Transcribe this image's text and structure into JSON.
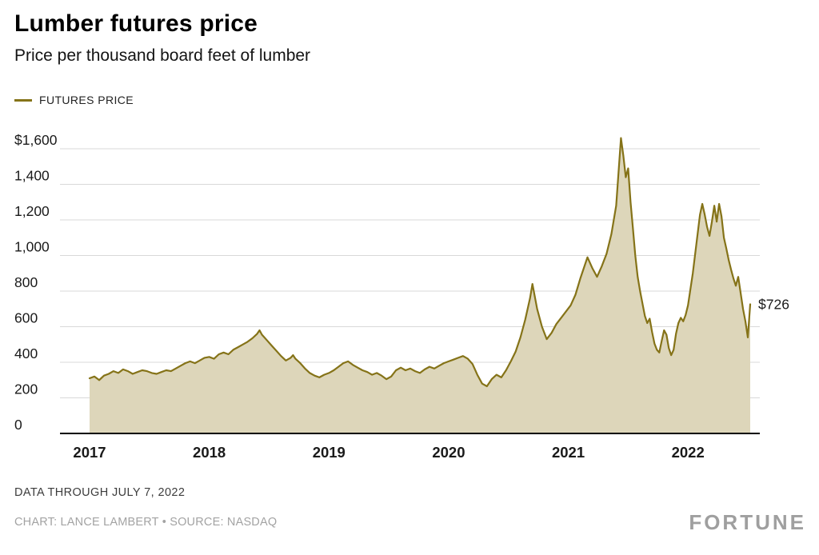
{
  "header": {
    "title": "Lumber futures price",
    "subtitle": "Price per thousand board feet of lumber"
  },
  "legend": {
    "label": "FUTURES PRICE"
  },
  "annotation": {
    "last_value_label": "$726"
  },
  "footer": {
    "note": "DATA THROUGH JULY 7, 2022",
    "credit": "CHART: LANCE LAMBERT • SOURCE: NASDAQ",
    "brand": "FORTUNE"
  },
  "colors": {
    "line": "#857318",
    "fill": "#ddd6ba",
    "grid": "#d9d9d9",
    "axis": "#000000",
    "text": "#1a1a1a",
    "muted": "#3c3c3c",
    "faint": "#a3a3a3"
  },
  "chart_data": {
    "type": "area",
    "title": "Lumber futures price",
    "subtitle": "Price per thousand board feet of lumber",
    "xlabel": "",
    "ylabel": "Price per thousand board feet of lumber",
    "ylim": [
      0,
      1600
    ],
    "x_range": [
      2017.0,
      2022.52
    ],
    "grid": "horizontal",
    "legend_position": "top-left",
    "last_point_label": "$726",
    "yticks": [
      {
        "value": 0,
        "label": "0"
      },
      {
        "value": 200,
        "label": "200"
      },
      {
        "value": 400,
        "label": "400"
      },
      {
        "value": 600,
        "label": "600"
      },
      {
        "value": 800,
        "label": "800"
      },
      {
        "value": 1000,
        "label": "1,000"
      },
      {
        "value": 1200,
        "label": "1,200"
      },
      {
        "value": 1400,
        "label": "1,400"
      },
      {
        "value": 1600,
        "label": "$1,600"
      }
    ],
    "xticks": [
      {
        "value": 2017,
        "label": "2017"
      },
      {
        "value": 2018,
        "label": "2018"
      },
      {
        "value": 2019,
        "label": "2019"
      },
      {
        "value": 2020,
        "label": "2020"
      },
      {
        "value": 2021,
        "label": "2021"
      },
      {
        "value": 2022,
        "label": "2022"
      }
    ],
    "series": [
      {
        "name": "FUTURES PRICE",
        "points": [
          [
            2017.0,
            310
          ],
          [
            2017.04,
            320
          ],
          [
            2017.08,
            300
          ],
          [
            2017.12,
            325
          ],
          [
            2017.16,
            335
          ],
          [
            2017.2,
            350
          ],
          [
            2017.24,
            340
          ],
          [
            2017.28,
            360
          ],
          [
            2017.32,
            350
          ],
          [
            2017.36,
            335
          ],
          [
            2017.4,
            345
          ],
          [
            2017.44,
            355
          ],
          [
            2017.48,
            350
          ],
          [
            2017.52,
            340
          ],
          [
            2017.56,
            335
          ],
          [
            2017.6,
            345
          ],
          [
            2017.64,
            355
          ],
          [
            2017.68,
            350
          ],
          [
            2017.72,
            365
          ],
          [
            2017.76,
            380
          ],
          [
            2017.8,
            395
          ],
          [
            2017.84,
            405
          ],
          [
            2017.88,
            395
          ],
          [
            2017.92,
            410
          ],
          [
            2017.96,
            425
          ],
          [
            2018.0,
            430
          ],
          [
            2018.04,
            420
          ],
          [
            2018.08,
            445
          ],
          [
            2018.12,
            455
          ],
          [
            2018.16,
            445
          ],
          [
            2018.2,
            470
          ],
          [
            2018.24,
            485
          ],
          [
            2018.28,
            500
          ],
          [
            2018.32,
            515
          ],
          [
            2018.36,
            535
          ],
          [
            2018.4,
            560
          ],
          [
            2018.42,
            580
          ],
          [
            2018.44,
            555
          ],
          [
            2018.48,
            525
          ],
          [
            2018.52,
            495
          ],
          [
            2018.56,
            465
          ],
          [
            2018.6,
            435
          ],
          [
            2018.64,
            410
          ],
          [
            2018.68,
            425
          ],
          [
            2018.7,
            440
          ],
          [
            2018.72,
            420
          ],
          [
            2018.76,
            395
          ],
          [
            2018.8,
            365
          ],
          [
            2018.84,
            340
          ],
          [
            2018.88,
            325
          ],
          [
            2018.92,
            315
          ],
          [
            2018.96,
            330
          ],
          [
            2019.0,
            340
          ],
          [
            2019.04,
            355
          ],
          [
            2019.08,
            375
          ],
          [
            2019.12,
            395
          ],
          [
            2019.16,
            405
          ],
          [
            2019.2,
            385
          ],
          [
            2019.24,
            370
          ],
          [
            2019.28,
            355
          ],
          [
            2019.32,
            345
          ],
          [
            2019.36,
            330
          ],
          [
            2019.4,
            340
          ],
          [
            2019.44,
            325
          ],
          [
            2019.48,
            305
          ],
          [
            2019.52,
            320
          ],
          [
            2019.56,
            355
          ],
          [
            2019.6,
            370
          ],
          [
            2019.64,
            355
          ],
          [
            2019.68,
            365
          ],
          [
            2019.72,
            350
          ],
          [
            2019.76,
            340
          ],
          [
            2019.8,
            360
          ],
          [
            2019.84,
            375
          ],
          [
            2019.88,
            365
          ],
          [
            2019.92,
            380
          ],
          [
            2019.96,
            395
          ],
          [
            2020.0,
            405
          ],
          [
            2020.04,
            415
          ],
          [
            2020.08,
            425
          ],
          [
            2020.12,
            435
          ],
          [
            2020.16,
            420
          ],
          [
            2020.2,
            390
          ],
          [
            2020.24,
            330
          ],
          [
            2020.28,
            280
          ],
          [
            2020.32,
            265
          ],
          [
            2020.36,
            305
          ],
          [
            2020.4,
            330
          ],
          [
            2020.44,
            315
          ],
          [
            2020.48,
            355
          ],
          [
            2020.52,
            405
          ],
          [
            2020.56,
            460
          ],
          [
            2020.6,
            540
          ],
          [
            2020.64,
            640
          ],
          [
            2020.68,
            760
          ],
          [
            2020.7,
            840
          ],
          [
            2020.74,
            700
          ],
          [
            2020.78,
            600
          ],
          [
            2020.82,
            530
          ],
          [
            2020.86,
            565
          ],
          [
            2020.9,
            615
          ],
          [
            2020.94,
            650
          ],
          [
            2020.98,
            685
          ],
          [
            2021.02,
            720
          ],
          [
            2021.06,
            780
          ],
          [
            2021.1,
            870
          ],
          [
            2021.14,
            950
          ],
          [
            2021.16,
            990
          ],
          [
            2021.2,
            930
          ],
          [
            2021.24,
            880
          ],
          [
            2021.28,
            940
          ],
          [
            2021.32,
            1010
          ],
          [
            2021.36,
            1120
          ],
          [
            2021.4,
            1280
          ],
          [
            2021.44,
            1660
          ],
          [
            2021.46,
            1560
          ],
          [
            2021.48,
            1440
          ],
          [
            2021.5,
            1490
          ],
          [
            2021.52,
            1300
          ],
          [
            2021.54,
            1150
          ],
          [
            2021.56,
            1000
          ],
          [
            2021.58,
            880
          ],
          [
            2021.6,
            800
          ],
          [
            2021.62,
            730
          ],
          [
            2021.64,
            660
          ],
          [
            2021.66,
            620
          ],
          [
            2021.68,
            645
          ],
          [
            2021.7,
            570
          ],
          [
            2021.72,
            505
          ],
          [
            2021.74,
            470
          ],
          [
            2021.76,
            455
          ],
          [
            2021.78,
            520
          ],
          [
            2021.8,
            580
          ],
          [
            2021.82,
            555
          ],
          [
            2021.84,
            480
          ],
          [
            2021.86,
            440
          ],
          [
            2021.88,
            470
          ],
          [
            2021.9,
            560
          ],
          [
            2021.92,
            620
          ],
          [
            2021.94,
            650
          ],
          [
            2021.96,
            630
          ],
          [
            2021.98,
            665
          ],
          [
            2022.0,
            720
          ],
          [
            2022.02,
            810
          ],
          [
            2022.04,
            900
          ],
          [
            2022.06,
            1010
          ],
          [
            2022.08,
            1120
          ],
          [
            2022.1,
            1230
          ],
          [
            2022.12,
            1290
          ],
          [
            2022.14,
            1230
          ],
          [
            2022.16,
            1160
          ],
          [
            2022.18,
            1110
          ],
          [
            2022.2,
            1190
          ],
          [
            2022.22,
            1280
          ],
          [
            2022.24,
            1190
          ],
          [
            2022.26,
            1290
          ],
          [
            2022.28,
            1220
          ],
          [
            2022.3,
            1100
          ],
          [
            2022.32,
            1040
          ],
          [
            2022.34,
            975
          ],
          [
            2022.36,
            920
          ],
          [
            2022.38,
            870
          ],
          [
            2022.4,
            830
          ],
          [
            2022.42,
            880
          ],
          [
            2022.44,
            790
          ],
          [
            2022.46,
            700
          ],
          [
            2022.48,
            630
          ],
          [
            2022.5,
            540
          ],
          [
            2022.52,
            726
          ]
        ]
      }
    ]
  }
}
